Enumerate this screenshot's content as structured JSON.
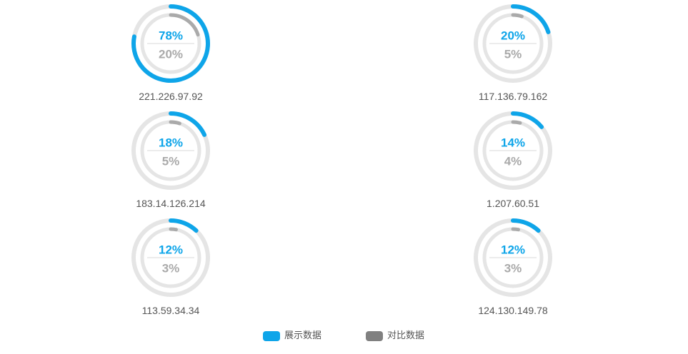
{
  "chart_data": {
    "type": "pie",
    "subtype": "donut-gauge-grid",
    "colors": {
      "primary": "#0ea5e9",
      "compare": "#aaaaaa",
      "track": "#e5e5e5",
      "divider": "#d9d9d9",
      "label": "#555555",
      "legend_compare_swatch": "#808080"
    },
    "legend": {
      "placement": "bottom-center",
      "items": [
        {
          "name": "展示数据",
          "color": "#0ea5e9"
        },
        {
          "name": "对比数据",
          "color": "#808080"
        }
      ]
    },
    "items": [
      {
        "label": "221.226.97.92",
        "primary_pct": 78,
        "primary_text": "78%",
        "compare_pct": 20,
        "compare_text": "20%"
      },
      {
        "label": "117.136.79.162",
        "primary_pct": 20,
        "primary_text": "20%",
        "compare_pct": 5,
        "compare_text": "5%"
      },
      {
        "label": "183.14.126.214",
        "primary_pct": 18,
        "primary_text": "18%",
        "compare_pct": 5,
        "compare_text": "5%"
      },
      {
        "label": "1.207.60.51",
        "primary_pct": 14,
        "primary_text": "14%",
        "compare_pct": 4,
        "compare_text": "4%"
      },
      {
        "label": "113.59.34.34",
        "primary_pct": 12,
        "primary_text": "12%",
        "compare_pct": 3,
        "compare_text": "3%"
      },
      {
        "label": "124.130.149.78",
        "primary_pct": 12,
        "primary_text": "12%",
        "compare_pct": 3,
        "compare_text": "3%"
      }
    ]
  }
}
